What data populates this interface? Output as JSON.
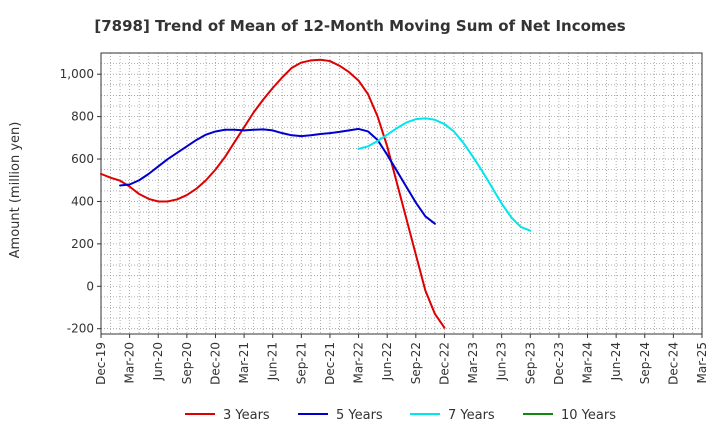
{
  "chart_data": {
    "type": "line",
    "title": "[7898]  Trend of Mean of 12-Month Moving Sum of Net Incomes",
    "xlabel": "",
    "ylabel": "Amount (million yen)",
    "ylim": [
      -225,
      1100
    ],
    "yticks": [
      -200,
      0,
      200,
      400,
      600,
      800,
      1000
    ],
    "ytick_labels": [
      "-200",
      "0",
      "200",
      "400",
      "600",
      "800",
      "1,000"
    ],
    "x_ticks": [
      "Dec-19",
      "Mar-20",
      "Jun-20",
      "Sep-20",
      "Dec-20",
      "Mar-21",
      "Jun-21",
      "Sep-21",
      "Dec-21",
      "Mar-22",
      "Jun-22",
      "Sep-22",
      "Dec-22",
      "Mar-23",
      "Jun-23",
      "Sep-23",
      "Dec-23",
      "Mar-24",
      "Jun-24",
      "Sep-24",
      "Dec-24",
      "Mar-25"
    ],
    "grid": true,
    "legend_position": "bottom",
    "series": [
      {
        "name": "3 Years",
        "color": "#dd0000",
        "start": "Dec-19",
        "values": [
          530,
          512,
          498,
          470,
          435,
          412,
          400,
          400,
          410,
          430,
          460,
          500,
          550,
          610,
          680,
          750,
          820,
          880,
          935,
          985,
          1030,
          1055,
          1065,
          1068,
          1062,
          1040,
          1010,
          970,
          905,
          800,
          660,
          490,
          320,
          150,
          -20,
          -130,
          -195
        ]
      },
      {
        "name": "5 Years",
        "color": "#0000cc",
        "start": "Feb-20",
        "values": [
          475,
          480,
          500,
          530,
          565,
          600,
          630,
          660,
          690,
          715,
          730,
          738,
          738,
          735,
          738,
          740,
          735,
          722,
          712,
          708,
          712,
          718,
          722,
          728,
          735,
          742,
          730,
          690,
          620,
          545,
          470,
          395,
          330,
          295
        ]
      },
      {
        "name": "7 Years",
        "color": "#00e5ee",
        "start": "Mar-22",
        "values": [
          648,
          660,
          685,
          715,
          745,
          772,
          788,
          792,
          785,
          765,
          730,
          675,
          610,
          540,
          465,
          390,
          325,
          280,
          262
        ]
      },
      {
        "name": "10 Years",
        "color": "#118811",
        "start": "",
        "values": []
      }
    ]
  }
}
